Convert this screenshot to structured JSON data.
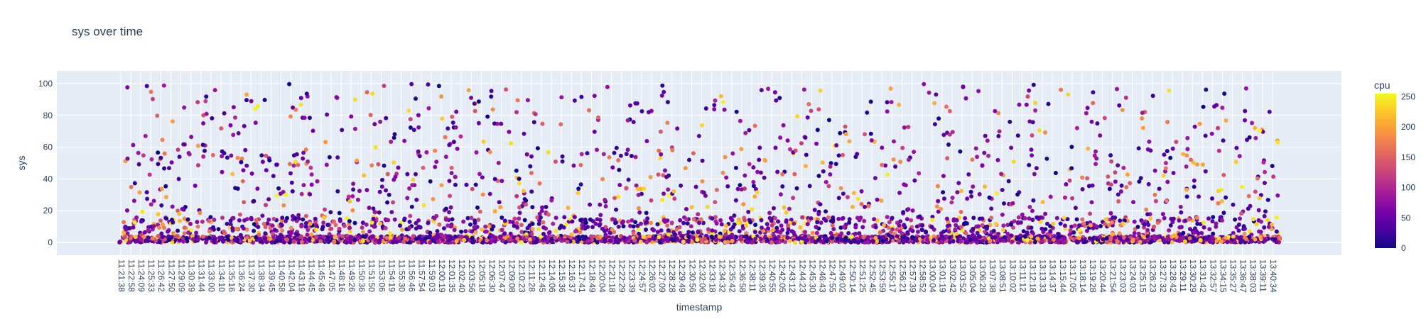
{
  "chart_data": {
    "type": "scatter",
    "title": "sys over time",
    "xlabel": "timestamp",
    "ylabel": "sys",
    "ylim": [
      -8,
      108
    ],
    "yticks": [
      0,
      20,
      40,
      60,
      80,
      100
    ],
    "grid": true,
    "x_ticks": [
      "11:21:38",
      "11:22:58",
      "11:24:09",
      "11:25:33",
      "11:26:42",
      "11:27:50",
      "11:29:09",
      "11:30:39",
      "11:31:44",
      "11:33:00",
      "11:34:10",
      "11:35:16",
      "11:36:24",
      "11:37:30",
      "11:38:34",
      "11:39:45",
      "11:40:58",
      "11:42:04",
      "11:43:19",
      "11:44:45",
      "11:45:49",
      "11:47:05",
      "11:48:16",
      "11:49:26",
      "11:50:36",
      "11:51:50",
      "11:53:06",
      "11:54:19",
      "11:55:30",
      "11:56:46",
      "11:57:54",
      "11:59:03",
      "12:00:19",
      "12:01:35",
      "12:02:40",
      "12:03:56",
      "12:05:18",
      "12:06:30",
      "12:07:47",
      "12:09:08",
      "12:10:23",
      "12:11:28",
      "12:12:45",
      "12:14:06",
      "12:15:36",
      "12:16:37",
      "12:17:41",
      "12:18:49",
      "12:20:04",
      "12:21:18",
      "12:22:29",
      "12:23:39",
      "12:24:57",
      "12:26:02",
      "12:27:09",
      "12:28:28",
      "12:29:49",
      "12:30:56",
      "12:32:06",
      "12:33:18",
      "12:34:32",
      "12:35:42",
      "12:36:58",
      "12:38:11",
      "12:39:35",
      "12:40:55",
      "12:42:05",
      "12:43:12",
      "12:44:23",
      "12:45:30",
      "12:46:43",
      "12:47:55",
      "12:49:02",
      "12:50:14",
      "12:51:25",
      "12:52:45",
      "12:53:59",
      "12:55:17",
      "12:56:21",
      "12:57:39",
      "12:58:52",
      "13:00:04",
      "13:01:19",
      "13:02:42",
      "13:03:52",
      "13:05:04",
      "13:06:28",
      "13:07:38",
      "13:08:51",
      "13:10:02",
      "13:11:12",
      "13:12:18",
      "13:13:33",
      "13:14:37",
      "13:15:44",
      "13:17:05",
      "13:18:14",
      "13:19:28",
      "13:20:44",
      "13:21:54",
      "13:23:03",
      "13:24:03",
      "13:25:15",
      "13:26:23",
      "13:27:32",
      "13:28:42",
      "13:29:11",
      "13:30:29",
      "13:31:42",
      "13:32:57",
      "13:34:15",
      "13:35:27",
      "13:36:47",
      "13:38:03",
      "13:39:11",
      "13:40:34"
    ],
    "colorbar": {
      "title": "cpu",
      "range": [
        0,
        255
      ],
      "ticks": [
        0,
        50,
        100,
        150,
        200,
        250
      ],
      "colorscale": [
        "#0d0887",
        "#46039f",
        "#7201a8",
        "#9c179e",
        "#bd3786",
        "#d8576b",
        "#ed7953",
        "#fb9f3a",
        "#fdca26",
        "#f0f921"
      ]
    },
    "points_summary": "dense scatter of sys values; most points 0-10, many scattered up to 100, colored by cpu"
  }
}
